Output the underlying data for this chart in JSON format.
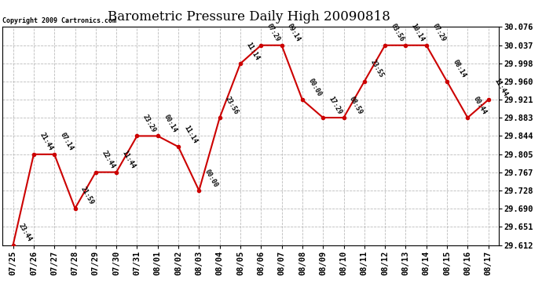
{
  "title": "Barometric Pressure Daily High 20090818",
  "copyright": "Copyright 2009 Cartronics.com",
  "x_labels": [
    "07/25",
    "07/26",
    "07/27",
    "07/28",
    "07/29",
    "07/30",
    "07/31",
    "08/01",
    "08/02",
    "08/03",
    "08/04",
    "08/05",
    "08/06",
    "08/07",
    "08/08",
    "08/09",
    "08/10",
    "08/11",
    "08/12",
    "08/13",
    "08/14",
    "08/15",
    "08/16",
    "08/17"
  ],
  "y_values": [
    29.612,
    29.805,
    29.805,
    29.69,
    29.767,
    29.767,
    29.844,
    29.844,
    29.821,
    29.728,
    29.883,
    29.998,
    30.037,
    30.037,
    29.921,
    29.883,
    29.883,
    29.96,
    30.037,
    30.037,
    30.037,
    29.96,
    29.883,
    29.921
  ],
  "time_labels": [
    "23:44",
    "21:44",
    "07:14",
    "21:59",
    "22:44",
    "11:44",
    "23:29",
    "00:14",
    "11:14",
    "00:00",
    "23:56",
    "11:14",
    "07:29",
    "09:14",
    "00:00",
    "17:29",
    "08:59",
    "23:55",
    "03:56",
    "10:14",
    "07:29",
    "08:14",
    "00:44",
    "11:44"
  ],
  "line_color": "#cc0000",
  "marker_color": "#cc0000",
  "background_color": "#ffffff",
  "grid_color": "#aaaaaa",
  "y_min": 29.612,
  "y_max": 30.076,
  "y_ticks": [
    29.612,
    29.651,
    29.69,
    29.728,
    29.767,
    29.805,
    29.844,
    29.883,
    29.921,
    29.96,
    29.998,
    30.037,
    30.076
  ],
  "title_fontsize": 12,
  "tick_fontsize": 7.5,
  "label_fontsize": 6
}
